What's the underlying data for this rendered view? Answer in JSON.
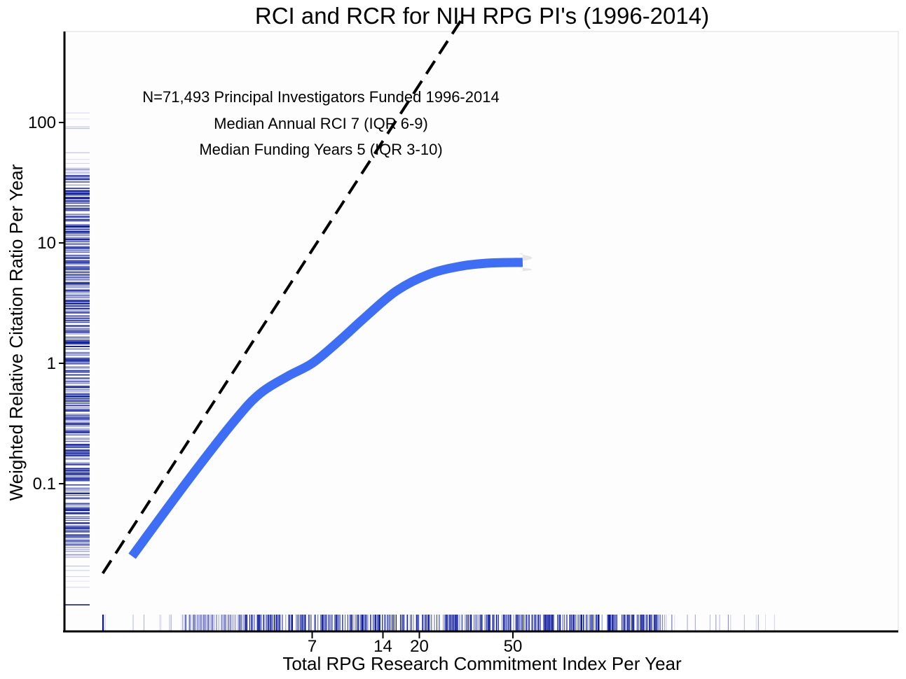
{
  "chart_data": {
    "type": "line",
    "title": "RCI and RCR for NIH RPG PI's (1996-2014)",
    "xlabel": "Total RPG Research Commitment Index Per Year",
    "ylabel": "Weighted Relative Citation Ratio Per Year",
    "x_scale": "log",
    "y_scale": "log",
    "xlim": [
      0.9,
      60
    ],
    "ylim": [
      0.005,
      800
    ],
    "x_ticks": [
      {
        "value": 7,
        "label": "7"
      },
      {
        "value": 14,
        "label": "14"
      },
      {
        "value": 20,
        "label": "20"
      },
      {
        "value": 50,
        "label": "50"
      }
    ],
    "y_ticks": [
      {
        "value": 0.1,
        "label": "0.1"
      },
      {
        "value": 1,
        "label": "1"
      },
      {
        "value": 10,
        "label": "10"
      },
      {
        "value": 100,
        "label": "100"
      }
    ],
    "annotations": [
      "N=71,493 Principal Investigators Funded 1996-2014",
      "Median Annual RCI 7 (IQR 6-9)",
      "Median Funding Years 5 (IQR 3-10)"
    ],
    "reference_line": {
      "style": "dashed",
      "color": "#000000",
      "slope_loglog": 1.7,
      "points": [
        {
          "x": 0.9,
          "y": 0.018
        },
        {
          "x": 30,
          "y": 700
        }
      ]
    },
    "series": [
      {
        "color": "#3d6ef5",
        "points": [
          {
            "x": 1.2,
            "y": 0.025
          },
          {
            "x": 2.1,
            "y": 0.11
          },
          {
            "x": 3.3,
            "y": 0.34
          },
          {
            "x": 4.2,
            "y": 0.56
          },
          {
            "x": 5.5,
            "y": 0.78
          },
          {
            "x": 7.0,
            "y": 1.0
          },
          {
            "x": 9.0,
            "y": 1.5
          },
          {
            "x": 12.0,
            "y": 2.5
          },
          {
            "x": 16.0,
            "y": 4.0
          },
          {
            "x": 22.0,
            "y": 5.5
          },
          {
            "x": 30.0,
            "y": 6.4
          },
          {
            "x": 40.0,
            "y": 6.8
          },
          {
            "x": 55.0,
            "y": 6.9
          }
        ],
        "confidence_band": {
          "color": "#e6e6e6",
          "from_x": 35,
          "lower_at_end": 5.8,
          "upper_at_end": 8.2
        }
      }
    ],
    "rug_color": "#00109a"
  }
}
